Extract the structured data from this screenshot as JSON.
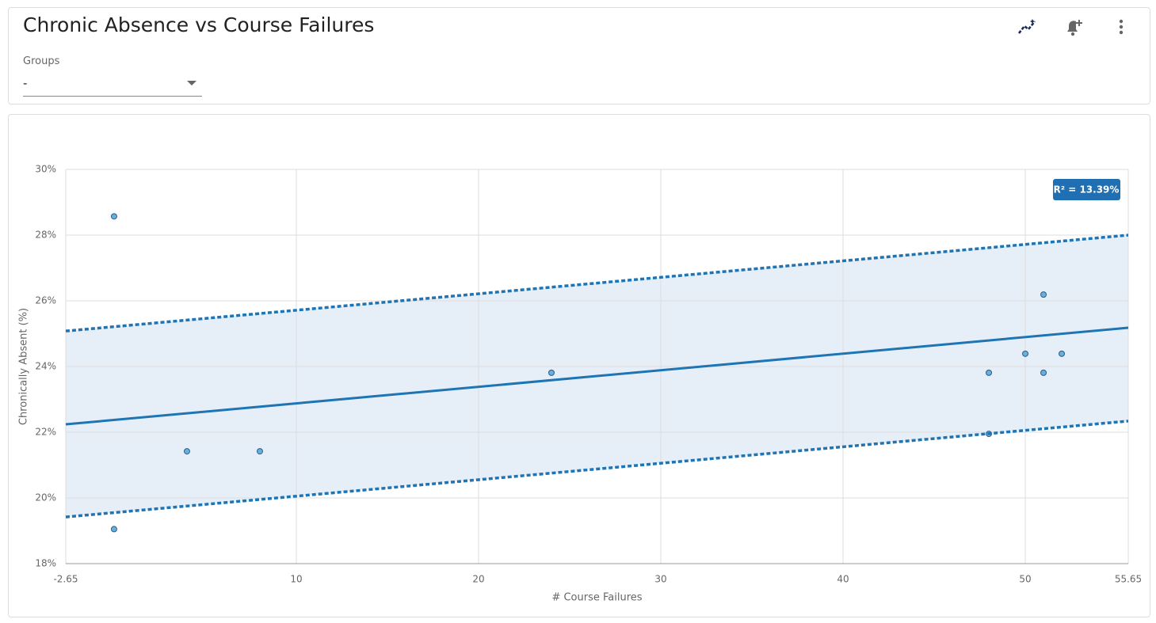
{
  "header": {
    "title": "Chronic Absence vs Course Failures",
    "filter_label": "Groups",
    "filter_value": "-"
  },
  "chart_data": {
    "type": "scatter",
    "x_label": "# Course Failures",
    "y_label": "Chronically Absent (%)",
    "annotation": "R² = 13.39%",
    "xlim": [
      -2.65,
      55.65
    ],
    "xticks": [
      -2.65,
      10,
      20,
      30,
      40,
      50,
      55.65
    ],
    "ylim": [
      18,
      30
    ],
    "yticks": [
      {
        "value": 18,
        "label": "18%"
      },
      {
        "value": 20,
        "label": "20%"
      },
      {
        "value": 22,
        "label": "22%"
      },
      {
        "value": 24,
        "label": "24%"
      },
      {
        "value": 26,
        "label": "26%"
      },
      {
        "value": 28,
        "label": "28%"
      },
      {
        "value": 30,
        "label": "30%"
      }
    ],
    "grid": true,
    "band_color": "#e6eff8",
    "series": [
      {
        "style": "points",
        "color": "#6aaedc",
        "x": [
          0,
          0,
          4,
          8,
          24,
          48,
          48,
          50,
          51,
          51,
          52
        ],
        "values": [
          28.57,
          19.05,
          21.42,
          21.42,
          23.81,
          23.81,
          21.95,
          24.39,
          26.19,
          23.81,
          24.39
        ]
      },
      {
        "style": "solid",
        "color": "#1f74b4",
        "x": [
          -2.65,
          55.65
        ],
        "values": [
          22.24,
          25.18
        ]
      },
      {
        "style": "dotted",
        "color": "#1f74b4",
        "x": [
          -2.65,
          55.65
        ],
        "values": [
          25.08,
          28.0
        ]
      },
      {
        "style": "dotted",
        "color": "#1f74b4",
        "x": [
          -2.65,
          55.65
        ],
        "values": [
          19.42,
          22.34
        ]
      }
    ]
  }
}
